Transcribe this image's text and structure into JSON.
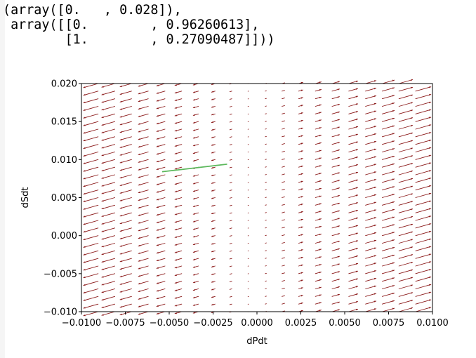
{
  "output": {
    "lines": [
      "(array([0.   , 0.028]),",
      " array([[0.        , 0.96260613],",
      "        [1.        , 0.27090487]]))"
    ]
  },
  "chart_data": {
    "type": "quiver",
    "xlabel": "dPdt",
    "ylabel": "dSdt",
    "xlim": [
      -0.01,
      0.01
    ],
    "ylim": [
      -0.01,
      0.02
    ],
    "xticks": [
      -0.01,
      -0.0075,
      -0.005,
      -0.0025,
      0.0,
      0.0025,
      0.005,
      0.0075,
      0.01
    ],
    "xtick_labels": [
      "−0.0100",
      "−0.0075",
      "−0.0050",
      "−0.0025",
      "0.0000",
      "0.0025",
      "0.0050",
      "0.0075",
      "0.0100"
    ],
    "yticks": [
      -0.01,
      -0.005,
      0.0,
      0.005,
      0.01,
      0.015,
      0.02
    ],
    "ytick_labels": [
      "−0.010",
      "−0.005",
      "0.000",
      "0.005",
      "0.010",
      "0.015",
      "0.020"
    ],
    "grid": false,
    "vector_field": {
      "color": "#8b1a1a",
      "x_start": -0.01,
      "x_step": 0.000952,
      "x_count": 22,
      "y_start": -0.01,
      "y_step": 0.001,
      "y_count": 31,
      "direction": [
        0.96260613,
        0.27090487
      ],
      "zero_x": -0.0002
    },
    "line": {
      "color": "#5cb85c",
      "x": [
        -0.0054,
        -0.0017
      ],
      "y": [
        0.0084,
        0.0094
      ]
    }
  }
}
